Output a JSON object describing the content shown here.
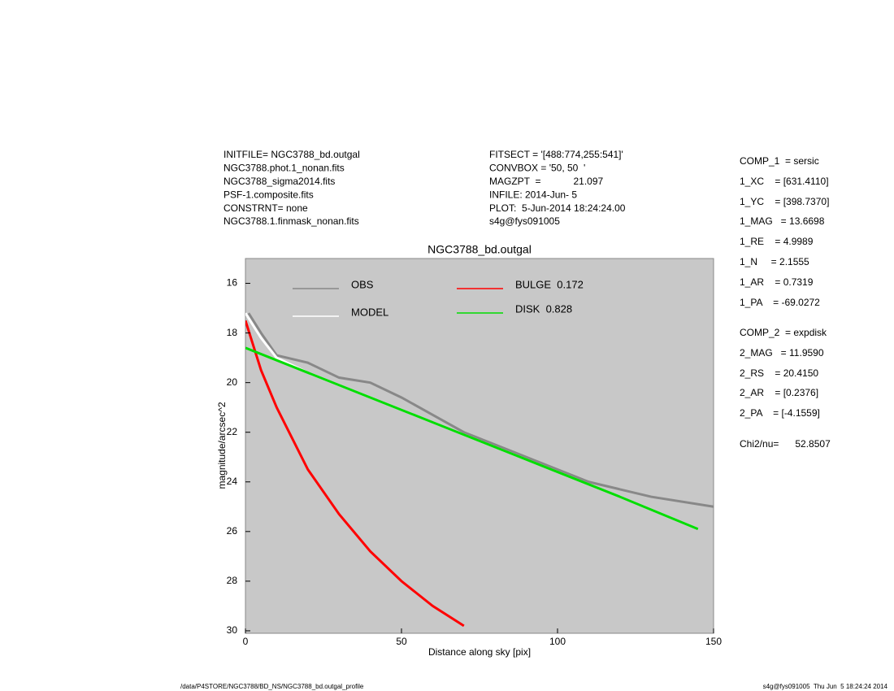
{
  "header": {
    "left": [
      "INITFILE= NGC3788_bd.outgal",
      "NGC3788.phot.1_nonan.fits",
      "NGC3788_sigma2014.fits",
      "PSF-1.composite.fits",
      "CONSTRNT= none",
      "NGC3788.1.finmask_nonan.fits"
    ],
    "middle": [
      "FITSECT = '[488:774,255:541]'",
      "CONVBOX = '50, 50  '",
      "MAGZPT  =            21.097",
      "INFILE: 2014-Jun- 5",
      "PLOT:  5-Jun-2014 18:24:24.00",
      "s4g@fys091005"
    ],
    "right": [
      "COMP_1  = sersic",
      "1_XC    = [631.4110]",
      "1_YC    = [398.7370]",
      "1_MAG   = 13.6698",
      "1_RE    = 4.9989",
      "1_N     = 2.1555",
      "1_AR    = 0.7319",
      "1_PA    = -69.0272",
      "COMP_2  = expdisk",
      "2_MAG   = 11.9590",
      "2_RS    = 20.4150",
      "2_AR    = [0.2376]",
      "2_PA    = [-4.1559]",
      "Chi2/nu=      52.8507"
    ]
  },
  "footer": {
    "left": "/data/P4STORE/NGC3788/BD_NS/NGC3788_bd.outgal_profile",
    "right": "s4g@fys091005  Thu Jun  5 18:24:24 2014"
  },
  "chart_data": {
    "type": "line",
    "title": "NGC3788_bd.outgal",
    "x_label": "Distance along sky [pix]",
    "y_label": "magnitude/arcsec^2",
    "xlim": [
      0,
      150
    ],
    "xticks": [
      0,
      50,
      100,
      150
    ],
    "ylim": [
      15,
      30.1
    ],
    "yticks": [
      16,
      18,
      20,
      22,
      24,
      26,
      28,
      30
    ],
    "y_reversed": true,
    "series": [
      {
        "name": "OBS",
        "color": "#888888",
        "x": [
          1,
          5,
          10,
          20,
          30,
          40,
          50,
          70,
          90,
          110,
          130,
          150
        ],
        "values": [
          17.2,
          18.0,
          18.9,
          19.2,
          19.8,
          20.0,
          20.6,
          22.0,
          23.0,
          24.0,
          24.6,
          25.0
        ]
      },
      {
        "name": "MODEL",
        "color": "#ffffff",
        "x": [
          0,
          5,
          10,
          20,
          40,
          60,
          80,
          100,
          120,
          145
        ],
        "values": [
          17.2,
          18.2,
          19.0,
          19.6,
          20.6,
          21.6,
          22.6,
          23.6,
          24.6,
          25.9
        ]
      },
      {
        "name": "BULGE  0.172",
        "color": "#ff0000",
        "x": [
          0,
          5,
          10,
          20,
          30,
          40,
          50,
          60,
          70
        ],
        "values": [
          17.5,
          19.5,
          21.0,
          23.5,
          25.3,
          26.8,
          28.0,
          29.0,
          29.8
        ]
      },
      {
        "name": "DISK  0.828",
        "color": "#00dd00",
        "x": [
          0,
          20,
          40,
          60,
          80,
          100,
          120,
          145
        ],
        "values": [
          18.6,
          19.6,
          20.6,
          21.6,
          22.6,
          23.6,
          24.6,
          25.9
        ]
      }
    ]
  }
}
